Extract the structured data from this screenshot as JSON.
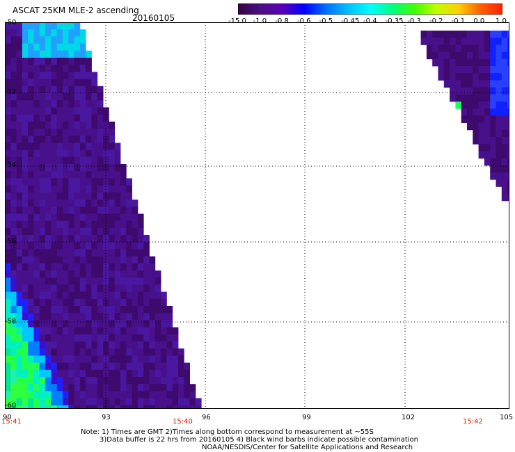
{
  "header": {
    "title": "ASCAT 25KM MLE-2 ascending",
    "date": "20160105"
  },
  "colorbar": {
    "labels": [
      "-15.0",
      "-1.0",
      "-0.8",
      "-0.6",
      "-0.5",
      "-0.45",
      "-0.4",
      "-0.35",
      "-0.3",
      "-0.2",
      "-0.1",
      "0.0",
      "1.0"
    ],
    "colors": [
      "#3a0046",
      "#4a1080",
      "#5a00b8",
      "#0000ff",
      "#0070ff",
      "#00c0ff",
      "#00ffff",
      "#00ff80",
      "#40ff00",
      "#c0ff00",
      "#ffd000",
      "#ff6000",
      "#ff2000"
    ]
  },
  "map": {
    "lon_labels": [
      "90",
      "93",
      "96",
      "99",
      "102",
      "105"
    ],
    "lat_labels": [
      "-50",
      "-52",
      "-54",
      "-56",
      "-58",
      "-60"
    ],
    "time_labels": [
      "15:41",
      "15:40",
      "15:42"
    ]
  },
  "notes": {
    "line1": "Note: 1) Times are GMT 2)Times along bottom correspond to measurement at ~55S",
    "line2": "3)Data buffer is 22 hrs from 20160105 4) Black wind barbs indicate possible contamination",
    "line3": "NOAA/NESDIS/Center for Satellite Applications and Research"
  }
}
